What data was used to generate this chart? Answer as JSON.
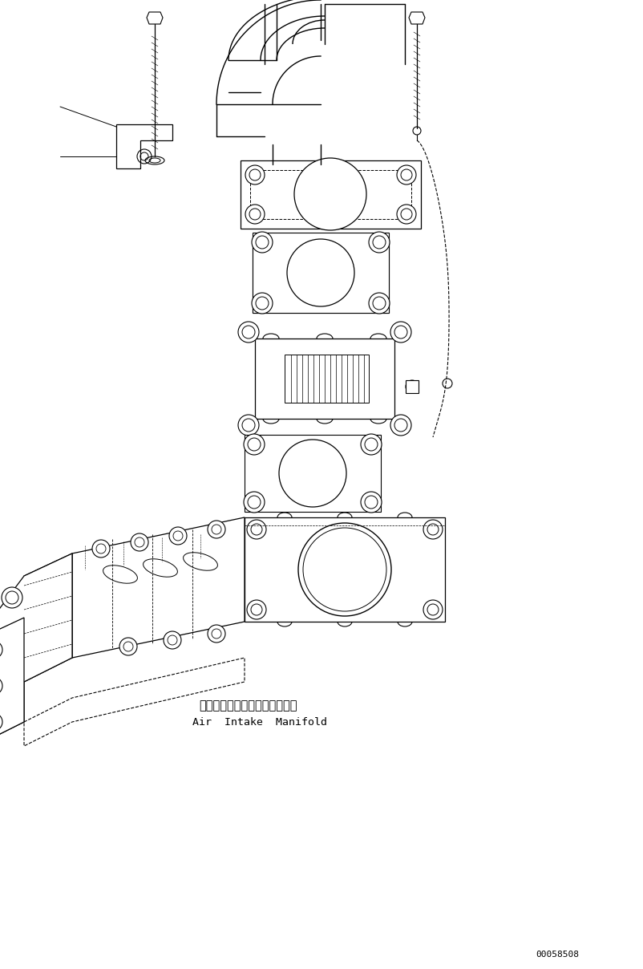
{
  "bg_color": "#ffffff",
  "line_color": "#000000",
  "fig_width": 8.02,
  "fig_height": 12.08,
  "dpi": 100,
  "part_number": "00058508",
  "label_japanese": "エアーインテークマニホールド",
  "label_english": "Air  Intake  Manifold"
}
